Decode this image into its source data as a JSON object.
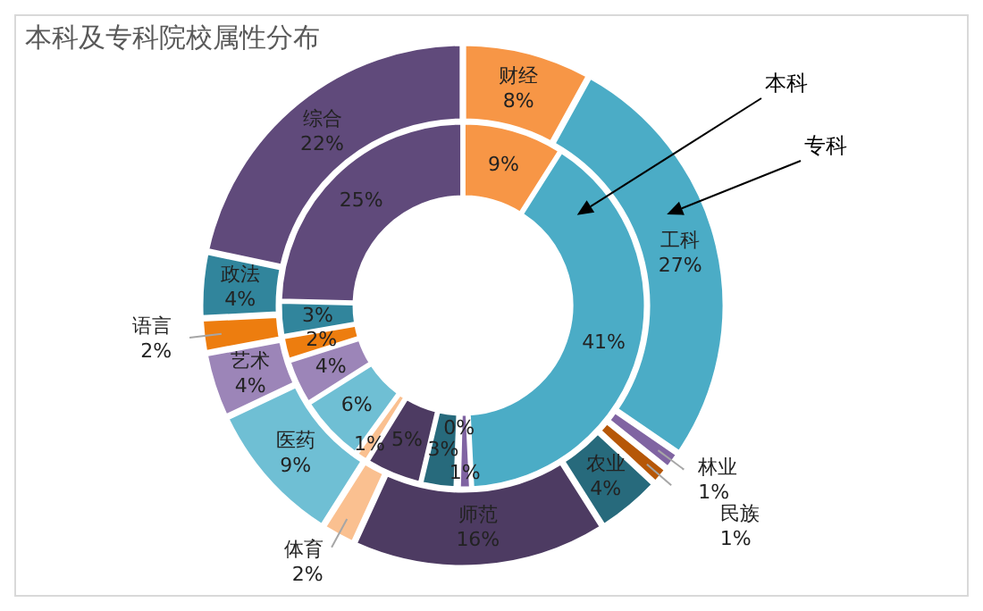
{
  "chart_data": {
    "type": "donut",
    "title": "本科及专科院校属性分布",
    "categories": [
      "财经",
      "工科",
      "林业",
      "民族",
      "农业",
      "师范",
      "体育",
      "医药",
      "艺术",
      "语言",
      "政法",
      "综合"
    ],
    "colors": [
      "#f79646",
      "#4bacc6",
      "#8064a2",
      "#b65708",
      "#276a7c",
      "#4d3b62",
      "#fac090",
      "#6fbfd4",
      "#9c85b8",
      "#ed7d0f",
      "#31859c",
      "#604a7b"
    ],
    "series": [
      {
        "name": "专科",
        "values": [
          8,
          27,
          1,
          1,
          4,
          16,
          2,
          9,
          4,
          2,
          4,
          22
        ],
        "value_labels": [
          "8%",
          "27%",
          "1%",
          "1%",
          "4%",
          "16%",
          "2%",
          "9%",
          "4%",
          "2%",
          "4%",
          "22%"
        ]
      },
      {
        "name": "本科",
        "values": [
          9,
          41,
          1,
          0,
          3,
          5,
          1,
          6,
          4,
          2,
          3,
          25
        ],
        "value_labels": [
          "9%",
          "41%",
          "1%",
          "0%",
          "3%",
          "5%",
          "1%",
          "6%",
          "4%",
          "2%",
          "3%",
          "25%"
        ]
      }
    ],
    "legend": false
  }
}
